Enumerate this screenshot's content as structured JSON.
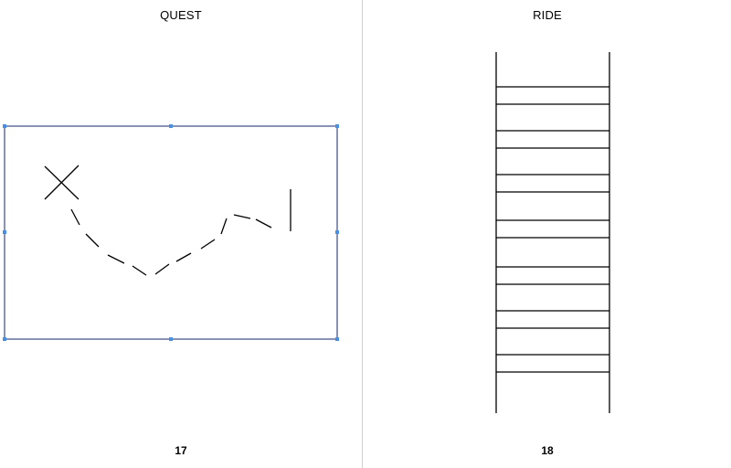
{
  "pages": [
    {
      "title": "QUEST",
      "number": "17",
      "drawing": "treasure-map",
      "selected": true
    },
    {
      "title": "RIDE",
      "number": "18",
      "drawing": "ladder",
      "selected": false
    }
  ],
  "colors": {
    "selection": "#4a90e2",
    "stroke": "#000000",
    "frame": "#3d4a86",
    "gutter": "#d0d0d0"
  }
}
